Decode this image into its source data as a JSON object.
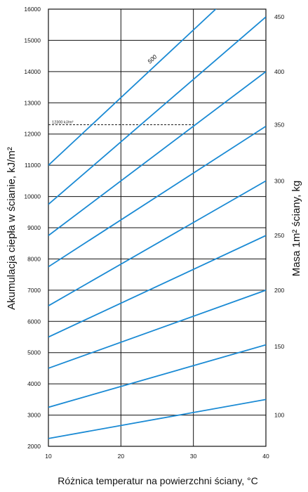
{
  "chart_data": {
    "type": "line",
    "xlabel": "Różnica temperatur na powierzchni ściany, °C",
    "ylabel_left": "Akumulacja ciepła w ścianie, kJ/m²",
    "ylabel_right": "Masa 1m² ściany, kg",
    "xlim": [
      10,
      40
    ],
    "ylim": [
      2000,
      16000
    ],
    "x_ticks": [
      "10",
      "20",
      "30",
      "40"
    ],
    "y_ticks": [
      "2000",
      "3000",
      "4000",
      "5000",
      "6000",
      "7000",
      "8000",
      "9000",
      "10000",
      "11000",
      "12000",
      "13000",
      "14000",
      "15000",
      "16000"
    ],
    "right_ticks": [
      {
        "label": "100",
        "at": 3000
      },
      {
        "label": "150",
        "at": 5200
      },
      {
        "label": "200",
        "at": 7000
      },
      {
        "label": "250",
        "at": 8750
      },
      {
        "label": "300",
        "at": 10500
      },
      {
        "label": "350",
        "at": 12300
      },
      {
        "label": "400",
        "at": 14000
      },
      {
        "label": "450",
        "at": 15750
      }
    ],
    "grid": true,
    "line_color": "#1a8ad4",
    "series": [
      {
        "x": [
          10,
          40
        ],
        "y": [
          2250,
          3500
        ]
      },
      {
        "x": [
          10,
          40
        ],
        "y": [
          3250,
          5250
        ]
      },
      {
        "x": [
          10,
          40
        ],
        "y": [
          4500,
          7000
        ]
      },
      {
        "x": [
          10,
          40
        ],
        "y": [
          5500,
          8750
        ]
      },
      {
        "x": [
          10,
          40
        ],
        "y": [
          6500,
          10500
        ]
      },
      {
        "x": [
          10,
          40
        ],
        "y": [
          7750,
          12250
        ]
      },
      {
        "x": [
          10,
          40
        ],
        "y": [
          8750,
          14000
        ]
      },
      {
        "x": [
          10,
          40
        ],
        "y": [
          9750,
          15750
        ]
      },
      {
        "name": "500",
        "x": [
          10,
          40
        ],
        "y": [
          11000,
          17500
        ]
      }
    ],
    "annotations": [
      {
        "text": "500",
        "x": 24.5,
        "y": 14350
      },
      {
        "text": "12300 kJ/m²",
        "x": 10.5,
        "y": 12300
      }
    ],
    "reference_line": {
      "y": 12300,
      "x": [
        10,
        30
      ]
    }
  }
}
